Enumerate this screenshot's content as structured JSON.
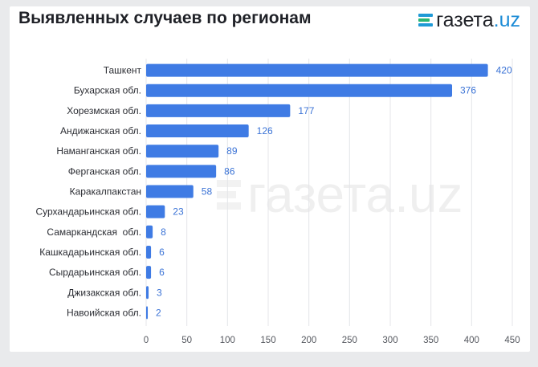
{
  "header": {
    "title": "Выявленных случаев по регионам",
    "brand_name": "газета",
    "brand_tld": ".uz"
  },
  "colors": {
    "bar": "#3f7be4",
    "value_label": "#3b73d6",
    "grid": "#e4e5e8",
    "brand_tld": "#1b8bd6",
    "brand_mark_1": "#1f9ad6",
    "brand_mark_2": "#2bb673",
    "brand_mark_3": "#1f9ad6"
  },
  "chart_data": {
    "type": "bar",
    "orientation": "horizontal",
    "title": "Выявленных случаев по регионам",
    "xlabel": "",
    "ylabel": "",
    "categories": [
      "Ташкент",
      "Бухарская обл.",
      "Хорезмская обл.",
      "Андижанская обл.",
      "Наманганская обл.",
      "Ферганская обл.",
      "Каракалпакстан",
      "Сурхандарьинская обл.",
      "Самаркандская  обл.",
      "Кашкадарьинская обл.",
      "Сырдарьинская обл.",
      "Джизакская обл.",
      "Навоийская обл."
    ],
    "values": [
      420,
      376,
      177,
      126,
      89,
      86,
      58,
      23,
      8,
      6,
      6,
      3,
      2
    ],
    "xlim": [
      0,
      450
    ],
    "xticks": [
      0,
      50,
      100,
      150,
      200,
      250,
      300,
      350,
      400,
      450
    ],
    "grid": true,
    "data_labels": true
  }
}
